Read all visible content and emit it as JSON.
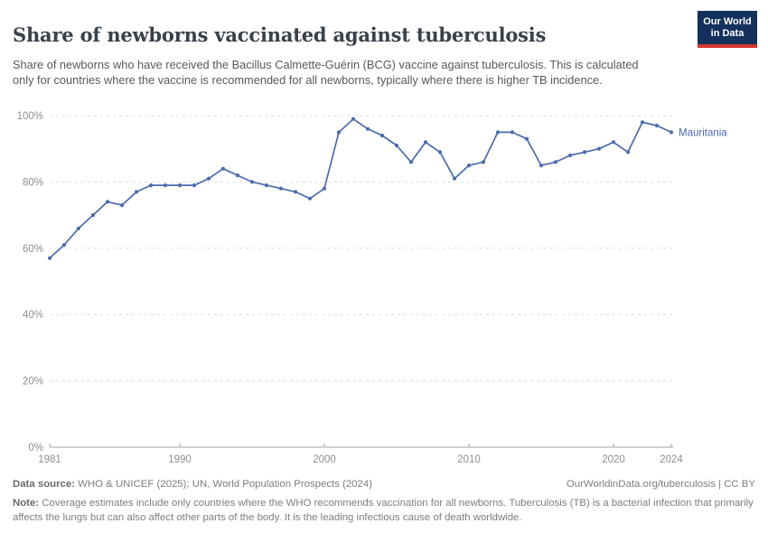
{
  "header": {
    "title": "Share of newborns vaccinated against tuberculosis",
    "subtitle": "Share of newborns who have received the Bacillus Calmette-Guérin (BCG) vaccine against tuberculosis. This is calculated only for countries where the vaccine is recommended for all newborns, typically where there is higher TB incidence."
  },
  "logo": {
    "line1": "Our World",
    "line2": "in Data"
  },
  "chart_data": {
    "type": "line",
    "title": "Share of newborns vaccinated against tuberculosis",
    "entity_label": "Mauritania",
    "unit": "%",
    "xlim": [
      1981,
      2024
    ],
    "ylim": [
      0,
      100
    ],
    "x_ticks": [
      1981,
      1990,
      2000,
      2010,
      2020,
      2024
    ],
    "y_ticks": [
      0,
      20,
      40,
      60,
      80,
      100
    ],
    "y_tick_suffix": "%",
    "grid": "horizontal-dashed",
    "legend_position": "end-of-line",
    "series": [
      {
        "name": "Mauritania",
        "color": "#4c6bab",
        "x": [
          1981,
          1982,
          1983,
          1984,
          1985,
          1986,
          1987,
          1988,
          1989,
          1990,
          1991,
          1992,
          1993,
          1994,
          1995,
          1996,
          1997,
          1998,
          1999,
          2000,
          2001,
          2002,
          2003,
          2004,
          2005,
          2006,
          2007,
          2008,
          2009,
          2010,
          2011,
          2012,
          2013,
          2014,
          2015,
          2016,
          2017,
          2018,
          2019,
          2020,
          2021,
          2022,
          2023,
          2024
        ],
        "values": [
          57,
          61,
          66,
          70,
          74,
          73,
          77,
          79,
          79,
          79,
          79,
          81,
          84,
          82,
          80,
          79,
          78,
          77,
          75,
          78,
          95,
          99,
          96,
          94,
          91,
          86,
          92,
          89,
          81,
          85,
          86,
          95,
          95,
          93,
          85,
          86,
          88,
          89,
          90,
          92,
          89,
          98,
          97,
          95
        ]
      }
    ]
  },
  "colors": {
    "line": "#4c6bab",
    "grid": "#dcdcdc",
    "axis": "#a3a3a3",
    "tick_label": "#8e8e8e",
    "logo_bg": "#14305c",
    "logo_stripe": "#d43830"
  },
  "footer": {
    "source_label": "Data source:",
    "source_text": " WHO & UNICEF (2025); UN, World Population Prospects (2024)",
    "link_text": "OurWorldinData.org/tuberculosis | CC BY",
    "note_label": "Note:",
    "note_text": " Coverage estimates include only countries where the WHO recommends vaccination for all newborns. Tuberculosis (TB) is a bacterial infection that primarily affects the lungs but can also affect other parts of the body. It is the leading infectious cause of death worldwide."
  }
}
